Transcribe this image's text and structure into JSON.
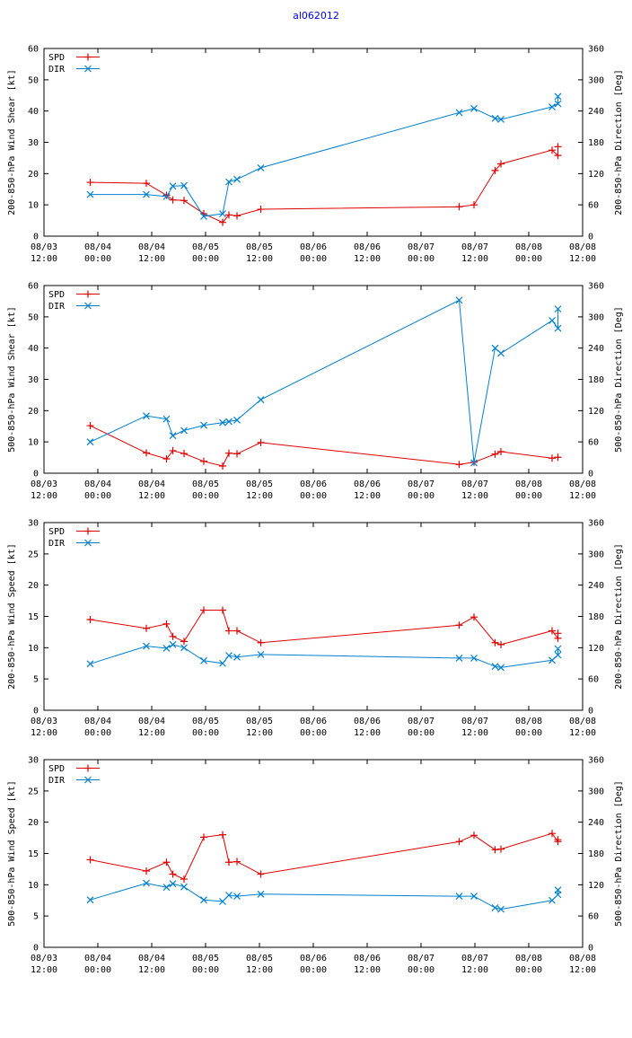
{
  "page": {
    "title": "al062012"
  },
  "colors": {
    "spd": "#e00000",
    "dir": "#0080d0",
    "axis": "#000000"
  },
  "chart_data": [
    {
      "type": "line",
      "title": "",
      "ylabel": "200-850-hPa Wind Shear [kt]",
      "y2label": "200-850-hPa Direction [Deg]",
      "ylim": [
        0,
        60
      ],
      "y2lim": [
        0,
        360
      ],
      "yticks": [
        "0",
        "10",
        "20",
        "30",
        "40",
        "50",
        "60"
      ],
      "y2ticks": [
        "0",
        "60",
        "120",
        "180",
        "240",
        "300",
        "360"
      ],
      "xlim": [
        0,
        120
      ],
      "xticks": [
        [
          "08/03",
          "12:00"
        ],
        [
          "08/04",
          "00:00"
        ],
        [
          "08/04",
          "12:00"
        ],
        [
          "08/05",
          "00:00"
        ],
        [
          "08/05",
          "12:00"
        ],
        [
          "08/06",
          "00:00"
        ],
        [
          "08/06",
          "12:00"
        ],
        [
          "08/07",
          "00:00"
        ],
        [
          "08/07",
          "12:00"
        ],
        [
          "08/08",
          "00:00"
        ],
        [
          "08/08",
          "12:00"
        ]
      ],
      "legend": [
        "SPD",
        "DIR"
      ],
      "series": [
        {
          "name": "SPD",
          "axis": "left",
          "x": [
            10.3,
            22.8,
            27.3,
            28.7,
            31.2,
            35.6,
            39.8,
            41.2,
            43.0,
            48.3,
            92.5,
            95.8,
            100.5,
            101.8,
            113.2,
            114.5,
            114.5
          ],
          "y": [
            17.2,
            16.9,
            13.1,
            11.6,
            11.4,
            7.2,
            4.4,
            6.8,
            6.5,
            8.6,
            9.4,
            10.0,
            21.0,
            23.1,
            27.5,
            25.8,
            28.6
          ]
        },
        {
          "name": "DIR",
          "axis": "right",
          "x": [
            10.3,
            22.8,
            27.3,
            28.7,
            31.2,
            35.6,
            39.8,
            41.2,
            43.0,
            48.3,
            92.5,
            95.8,
            100.5,
            101.8,
            113.2,
            114.5,
            114.5
          ],
          "y": [
            80,
            80,
            76,
            96,
            97,
            38,
            43,
            104,
            109,
            131,
            237,
            245,
            226,
            224,
            248,
            254,
            268
          ]
        }
      ]
    },
    {
      "type": "line",
      "title": "",
      "ylabel": "500-850-hPa Wind Shear [kt]",
      "y2label": "500-850-hPa Direction [Deg]",
      "ylim": [
        0,
        60
      ],
      "y2lim": [
        0,
        360
      ],
      "yticks": [
        "0",
        "10",
        "20",
        "30",
        "40",
        "50",
        "60"
      ],
      "y2ticks": [
        "0",
        "60",
        "120",
        "180",
        "240",
        "300",
        "360"
      ],
      "xlim": [
        0,
        120
      ],
      "xticks": [
        [
          "08/03",
          "12:00"
        ],
        [
          "08/04",
          "00:00"
        ],
        [
          "08/04",
          "12:00"
        ],
        [
          "08/05",
          "00:00"
        ],
        [
          "08/05",
          "12:00"
        ],
        [
          "08/06",
          "00:00"
        ],
        [
          "08/06",
          "12:00"
        ],
        [
          "08/07",
          "00:00"
        ],
        [
          "08/07",
          "12:00"
        ],
        [
          "08/08",
          "00:00"
        ],
        [
          "08/08",
          "12:00"
        ]
      ],
      "legend": [
        "SPD",
        "DIR"
      ],
      "series": [
        {
          "name": "SPD",
          "axis": "left",
          "x": [
            10.3,
            22.8,
            27.3,
            28.7,
            31.2,
            35.6,
            39.8,
            41.2,
            43.0,
            48.3,
            92.5,
            95.8,
            100.5,
            101.8,
            113.2,
            114.5
          ],
          "y": [
            15.2,
            6.5,
            4.6,
            7.2,
            6.3,
            3.8,
            2.3,
            6.4,
            6.2,
            9.8,
            2.8,
            3.5,
            6.1,
            6.9,
            4.8,
            5.1
          ]
        },
        {
          "name": "DIR",
          "axis": "right",
          "x": [
            10.3,
            22.8,
            27.3,
            28.7,
            31.2,
            35.6,
            39.8,
            41.2,
            43.0,
            48.3,
            92.5,
            95.8,
            100.5,
            101.8,
            113.2,
            114.5,
            114.5
          ],
          "y": [
            60,
            110,
            104,
            72,
            82,
            92,
            97,
            99,
            102,
            141,
            332,
            20,
            240,
            230,
            293,
            278,
            315
          ]
        }
      ]
    },
    {
      "type": "line",
      "title": "",
      "ylabel": "200-850-hPa Wind Speed [kt]",
      "y2label": "200-850-hPa Direction [Deg]",
      "ylim": [
        0,
        30
      ],
      "y2lim": [
        0,
        360
      ],
      "yticks": [
        "0",
        "5",
        "10",
        "15",
        "20",
        "25",
        "30"
      ],
      "y2ticks": [
        "0",
        "60",
        "120",
        "180",
        "240",
        "300",
        "360"
      ],
      "xlim": [
        0,
        120
      ],
      "xticks": [
        [
          "08/03",
          "12:00"
        ],
        [
          "08/04",
          "00:00"
        ],
        [
          "08/04",
          "12:00"
        ],
        [
          "08/05",
          "00:00"
        ],
        [
          "08/05",
          "12:00"
        ],
        [
          "08/06",
          "00:00"
        ],
        [
          "08/06",
          "12:00"
        ],
        [
          "08/07",
          "00:00"
        ],
        [
          "08/07",
          "12:00"
        ],
        [
          "08/08",
          "00:00"
        ],
        [
          "08/08",
          "12:00"
        ]
      ],
      "legend": [
        "SPD",
        "DIR"
      ],
      "series": [
        {
          "name": "SPD",
          "axis": "left",
          "x": [
            10.3,
            22.8,
            27.3,
            28.7,
            31.2,
            35.6,
            39.8,
            41.2,
            43.0,
            48.3,
            92.5,
            95.8,
            100.5,
            101.8,
            113.2,
            114.5,
            114.5
          ],
          "y": [
            14.5,
            13.1,
            13.8,
            11.8,
            11.0,
            16.0,
            16.0,
            12.7,
            12.7,
            10.8,
            13.6,
            14.9,
            10.8,
            10.5,
            12.7,
            11.5,
            12.3
          ]
        },
        {
          "name": "DIR",
          "axis": "right",
          "x": [
            10.3,
            22.8,
            27.3,
            28.7,
            31.2,
            35.6,
            39.8,
            41.2,
            43.0,
            48.3,
            92.5,
            95.8,
            100.5,
            101.8,
            113.2,
            114.5,
            114.5
          ],
          "y": [
            89,
            123,
            119,
            126,
            120,
            95,
            90,
            105,
            102,
            107,
            100,
            100,
            84,
            82,
            96,
            106,
            118
          ]
        }
      ]
    },
    {
      "type": "line",
      "title": "",
      "ylabel": "500-850-hPa Wind Speed [kt]",
      "y2label": "500-850-hPa Direction [Deg]",
      "ylim": [
        0,
        30
      ],
      "y2lim": [
        0,
        360
      ],
      "yticks": [
        "0",
        "5",
        "10",
        "15",
        "20",
        "25",
        "30"
      ],
      "y2ticks": [
        "0",
        "60",
        "120",
        "180",
        "240",
        "300",
        "360"
      ],
      "xlim": [
        0,
        120
      ],
      "xticks": [
        [
          "08/03",
          "12:00"
        ],
        [
          "08/04",
          "00:00"
        ],
        [
          "08/04",
          "12:00"
        ],
        [
          "08/05",
          "00:00"
        ],
        [
          "08/05",
          "12:00"
        ],
        [
          "08/06",
          "00:00"
        ],
        [
          "08/06",
          "12:00"
        ],
        [
          "08/07",
          "00:00"
        ],
        [
          "08/07",
          "12:00"
        ],
        [
          "08/08",
          "00:00"
        ],
        [
          "08/08",
          "12:00"
        ]
      ],
      "legend": [
        "SPD",
        "DIR"
      ],
      "series": [
        {
          "name": "SPD",
          "axis": "left",
          "x": [
            10.3,
            22.8,
            27.3,
            28.7,
            31.2,
            35.6,
            39.8,
            41.2,
            43.0,
            48.3,
            92.5,
            95.8,
            100.5,
            101.8,
            113.2,
            114.5,
            114.5
          ],
          "y": [
            14.0,
            12.2,
            13.6,
            11.7,
            10.9,
            17.6,
            18.0,
            13.6,
            13.7,
            11.7,
            16.9,
            17.9,
            15.6,
            15.7,
            18.2,
            16.9,
            17.2
          ]
        },
        {
          "name": "DIR",
          "axis": "right",
          "x": [
            10.3,
            22.8,
            27.3,
            28.7,
            31.2,
            35.6,
            39.8,
            41.2,
            43.0,
            48.3,
            92.5,
            95.8,
            100.5,
            101.8,
            113.2,
            114.5,
            114.5
          ],
          "y": [
            91,
            123,
            115,
            122,
            116,
            91,
            88,
            100,
            98,
            102,
            98,
            98,
            76,
            73,
            90,
            101,
            110
          ]
        }
      ]
    }
  ]
}
